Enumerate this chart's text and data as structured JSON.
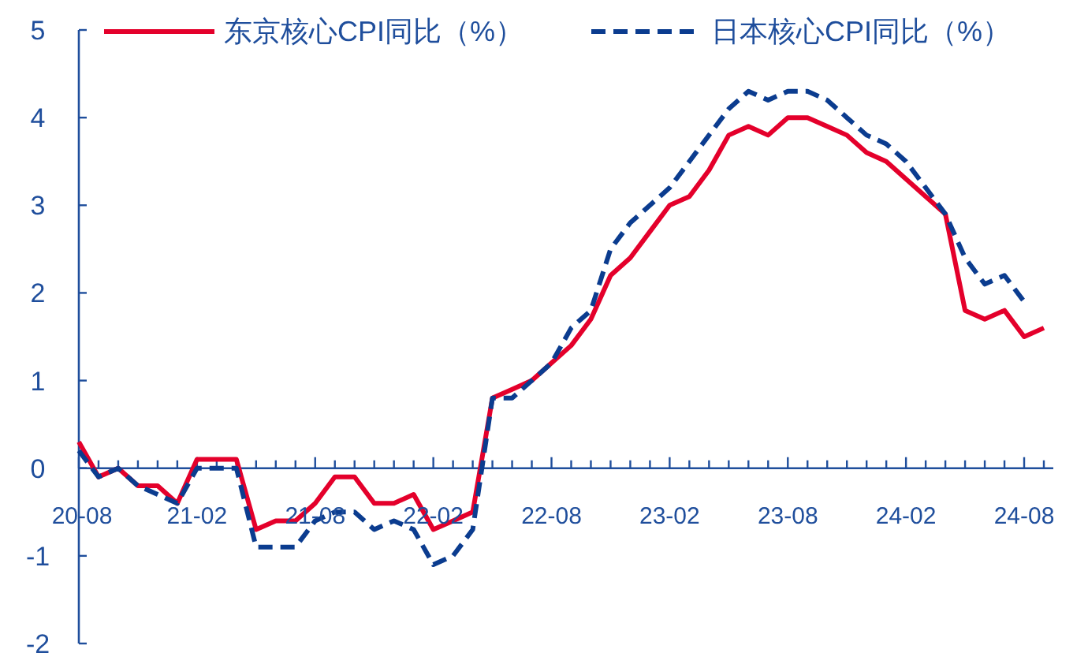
{
  "chart_data": {
    "type": "line",
    "categories": [
      "20-08",
      null,
      null,
      null,
      null,
      null,
      "21-02",
      null,
      null,
      null,
      null,
      null,
      "21-08",
      null,
      null,
      null,
      null,
      null,
      "22-02",
      null,
      null,
      null,
      null,
      null,
      "22-08",
      null,
      null,
      null,
      null,
      null,
      "23-02",
      null,
      null,
      null,
      null,
      null,
      "23-08",
      null,
      null,
      null,
      null,
      null,
      "24-02",
      null,
      null,
      null,
      null,
      null,
      "24-08",
      null
    ],
    "series": [
      {
        "name": "东京核心CPI同比（%）",
        "color": "#e4002b",
        "line_style": "solid",
        "values": [
          0.3,
          -0.1,
          0,
          -0.2,
          -0.2,
          -0.4,
          0.1,
          0.1,
          0.1,
          -0.7,
          -0.6,
          -0.6,
          -0.4,
          -0.1,
          -0.1,
          -0.4,
          -0.4,
          -0.3,
          -0.7,
          -0.6,
          -0.5,
          0.8,
          0.9,
          1.0,
          1.2,
          1.4,
          1.7,
          2.2,
          2.4,
          2.7,
          3.0,
          3.1,
          3.4,
          3.8,
          3.9,
          3.8,
          4.0,
          4.0,
          3.9,
          3.8,
          3.6,
          3.5,
          3.3,
          3.1,
          2.9,
          1.8,
          1.7,
          1.8,
          1.5,
          1.6
        ]
      },
      {
        "name": "日本核心CPI同比（%）",
        "color": "#0b3c8f",
        "line_style": "dashed",
        "values": [
          0.2,
          -0.1,
          0,
          -0.2,
          -0.3,
          -0.4,
          0,
          0,
          0,
          -0.9,
          -0.9,
          -0.9,
          -0.6,
          -0.5,
          -0.5,
          -0.7,
          -0.6,
          -0.7,
          -1.1,
          -1.0,
          -0.7,
          0.8,
          0.8,
          1.0,
          1.2,
          1.6,
          1.8,
          2.5,
          2.8,
          3.0,
          3.2,
          3.5,
          3.8,
          4.1,
          4.3,
          4.2,
          4.3,
          4.3,
          4.2,
          4.0,
          3.8,
          3.7,
          3.5,
          3.2,
          2.9,
          2.4,
          2.1,
          2.2,
          1.9,
          null
        ]
      }
    ],
    "ylim": [
      -2,
      5
    ],
    "yticks": [
      -2,
      -1,
      0,
      1,
      2,
      3,
      4,
      5
    ],
    "legend": "top"
  }
}
